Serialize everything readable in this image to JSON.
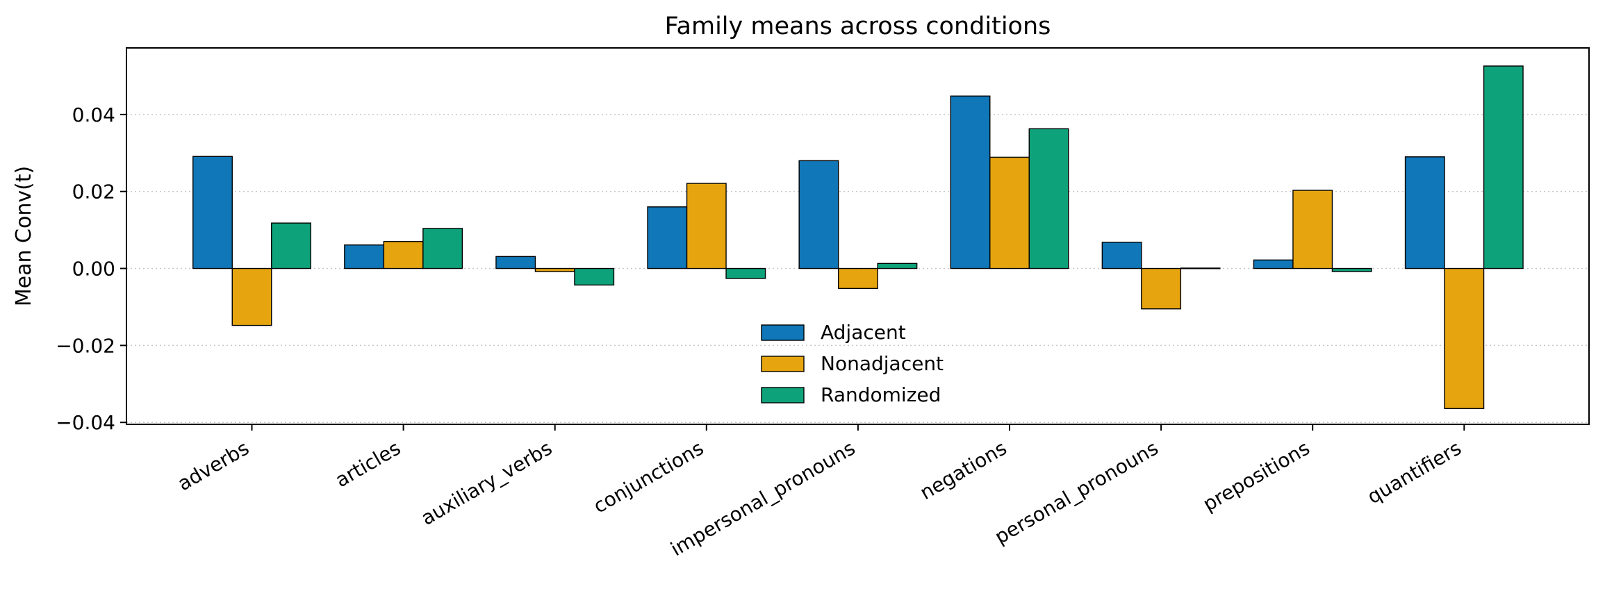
{
  "chart_data": {
    "type": "bar",
    "title": "Family means across conditions",
    "xlabel": "",
    "ylabel": "Mean Conv(t)",
    "categories": [
      "adverbs",
      "articles",
      "auxiliary_verbs",
      "conjunctions",
      "impersonal_pronouns",
      "negations",
      "personal_pronouns",
      "prepositions",
      "quantifiers"
    ],
    "series": [
      {
        "name": "Adjacent",
        "color": "#1077b8",
        "values": [
          0.0291,
          0.0061,
          0.0031,
          0.016,
          0.028,
          0.0448,
          0.0068,
          0.0022,
          0.029
        ]
      },
      {
        "name": "Nonadjacent",
        "color": "#e6a50f",
        "values": [
          -0.0148,
          0.007,
          -0.0008,
          0.0221,
          -0.0052,
          0.0289,
          -0.0105,
          0.0203,
          -0.0364
        ]
      },
      {
        "name": "Randomized",
        "color": "#0ea27a",
        "values": [
          0.0118,
          0.0104,
          -0.0043,
          -0.0026,
          0.0013,
          0.0363,
          0.0001,
          -0.0008,
          0.0526
        ]
      }
    ],
    "ylim": [
      -0.0405,
      0.0573
    ],
    "yticks": [
      -0.04,
      -0.02,
      0.0,
      0.02,
      0.04
    ],
    "ytick_labels": [
      "−0.04",
      "−0.02",
      "0.00",
      "0.02",
      "0.04"
    ],
    "grid": {
      "y": true,
      "style": "dotted"
    },
    "legend_position": "lower-center"
  }
}
